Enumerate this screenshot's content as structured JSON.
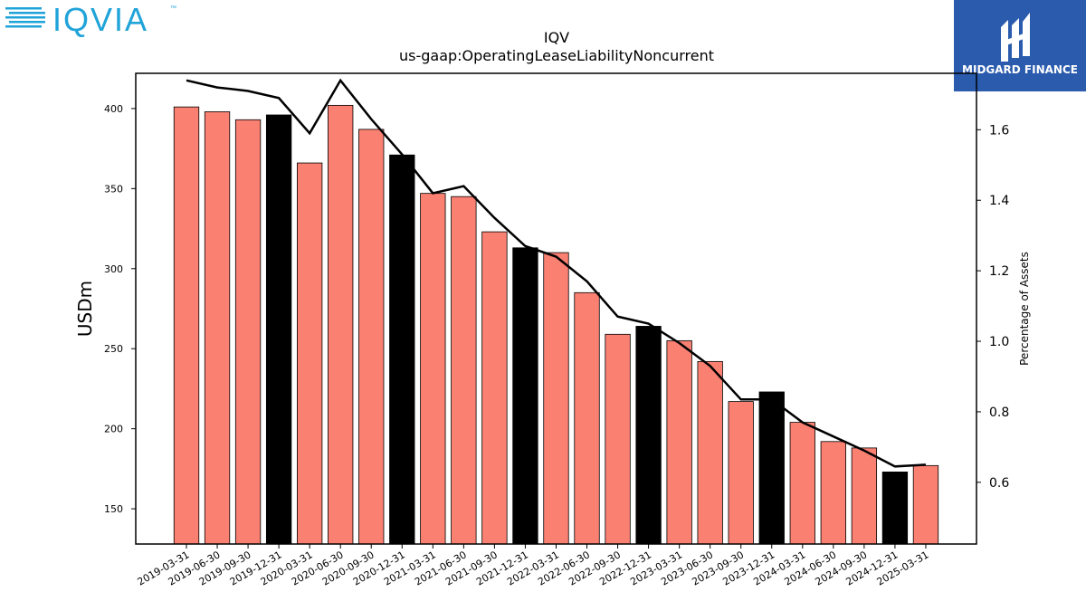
{
  "brand": {
    "left_logo_text": "IQVIA",
    "left_logo_tm": "™",
    "right_logo_text": "MIDGARD FINANCE",
    "left_logo_color": "#1fa3d8",
    "right_logo_bg": "#2a5bad"
  },
  "chart_data": {
    "type": "bar",
    "title": "IQV",
    "subtitle": "us-gaap:OperatingLeaseLiabilityNoncurrent",
    "ylabel": "USDm",
    "y2label": "Percentage of Assets",
    "ylim": [
      128,
      422
    ],
    "y2lim": [
      0.425,
      1.76
    ],
    "yticks": [
      150,
      200,
      250,
      300,
      350,
      400
    ],
    "y2ticks": [
      "0.6",
      "0.8",
      "1.0",
      "1.2",
      "1.4",
      "1.6"
    ],
    "categories": [
      "2019-03-31",
      "2019-06-30",
      "2019-09-30",
      "2019-12-31",
      "2020-03-31",
      "2020-06-30",
      "2020-09-30",
      "2020-12-31",
      "2021-03-31",
      "2021-06-30",
      "2021-09-30",
      "2021-12-31",
      "2022-03-31",
      "2022-06-30",
      "2022-09-30",
      "2022-12-31",
      "2023-03-31",
      "2023-06-30",
      "2023-09-30",
      "2023-12-31",
      "2024-03-31",
      "2024-06-30",
      "2024-09-30",
      "2024-12-31",
      "2025-03-31"
    ],
    "values": [
      401,
      398,
      393,
      396,
      366,
      402,
      387,
      371,
      347,
      345,
      323,
      313,
      310,
      285,
      259,
      264,
      255,
      242,
      217,
      223,
      204,
      192,
      188,
      173,
      177
    ],
    "bar_colors": [
      "#fa8072",
      "#fa8072",
      "#fa8072",
      "#000000",
      "#fa8072",
      "#fa8072",
      "#fa8072",
      "#000000",
      "#fa8072",
      "#fa8072",
      "#fa8072",
      "#000000",
      "#fa8072",
      "#fa8072",
      "#fa8072",
      "#000000",
      "#fa8072",
      "#fa8072",
      "#fa8072",
      "#000000",
      "#fa8072",
      "#fa8072",
      "#fa8072",
      "#000000",
      "#fa8072"
    ],
    "series": [
      {
        "axis": "right",
        "color": "#000000",
        "values": [
          1.74,
          1.72,
          1.71,
          1.69,
          1.59,
          1.74,
          1.63,
          1.53,
          1.42,
          1.44,
          1.35,
          1.27,
          1.24,
          1.17,
          1.07,
          1.05,
          0.995,
          0.93,
          0.835,
          0.835,
          0.77,
          0.73,
          0.69,
          0.645,
          0.65
        ]
      }
    ],
    "grid": false,
    "legend": "none"
  }
}
